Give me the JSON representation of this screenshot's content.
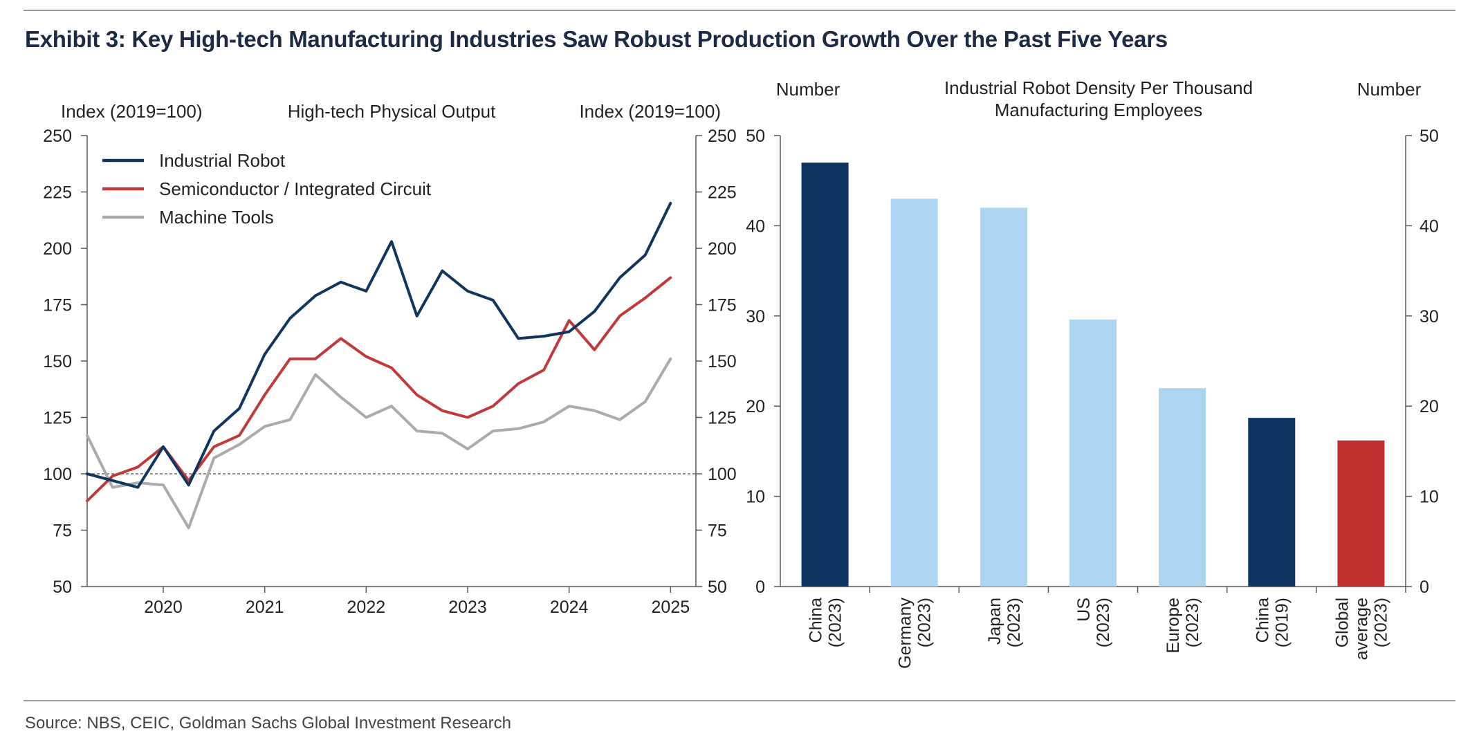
{
  "title": "Exhibit 3: Key High-tech Manufacturing Industries Saw Robust Production Growth Over the Past Five Years",
  "source": "Source: NBS, CEIC, Goldman Sachs Global Investment Research",
  "colors": {
    "navy": "#10365e",
    "red": "#c0393b",
    "gray": "#ababab",
    "light_blue": "#add4f1",
    "china_bar": "#0d3360",
    "global_bar": "#bd2f2f"
  },
  "chart_data": [
    {
      "type": "line",
      "title": "High-tech Physical Output",
      "ylabel_left": "Index (2019=100)",
      "ylabel_right": "Index (2019=100)",
      "ylim": [
        50,
        250
      ],
      "yticks": [
        50,
        75,
        100,
        125,
        150,
        175,
        200,
        225,
        250
      ],
      "reference_line": 100,
      "xlim": [
        2019.25,
        2025.25
      ],
      "xticks": [
        "2020",
        "2021",
        "2022",
        "2023",
        "2024",
        "2025"
      ],
      "series": [
        {
          "name": "Industrial Robot",
          "color": "#10365e",
          "x": [
            2019.25,
            2019.5,
            2019.75,
            2020.0,
            2020.25,
            2020.5,
            2020.75,
            2021.0,
            2021.25,
            2021.5,
            2021.75,
            2022.0,
            2022.25,
            2022.5,
            2022.75,
            2023.0,
            2023.25,
            2023.5,
            2023.75,
            2024.0,
            2024.25,
            2024.5,
            2024.75,
            2025.0
          ],
          "values": [
            100,
            97,
            94,
            112,
            95,
            119,
            129,
            153,
            169,
            179,
            185,
            181,
            203,
            170,
            190,
            181,
            177,
            160,
            161,
            163,
            172,
            187,
            197,
            220
          ]
        },
        {
          "name": "Semiconductor / Integrated Circuit",
          "color": "#c0393b",
          "x": [
            2019.25,
            2019.5,
            2019.75,
            2020.0,
            2020.25,
            2020.5,
            2020.75,
            2021.0,
            2021.25,
            2021.5,
            2021.75,
            2022.0,
            2022.25,
            2022.5,
            2022.75,
            2023.0,
            2023.25,
            2023.5,
            2023.75,
            2024.0,
            2024.25,
            2024.5,
            2024.75,
            2025.0
          ],
          "values": [
            88,
            99,
            103,
            112,
            97,
            112,
            117,
            135,
            151,
            151,
            160,
            152,
            147,
            135,
            128,
            125,
            130,
            140,
            146,
            168,
            155,
            170,
            178,
            187
          ]
        },
        {
          "name": "Machine Tools",
          "color": "#ababab",
          "x": [
            2019.25,
            2019.5,
            2019.75,
            2020.0,
            2020.25,
            2020.5,
            2020.75,
            2021.0,
            2021.25,
            2021.5,
            2021.75,
            2022.0,
            2022.25,
            2022.5,
            2022.75,
            2023.0,
            2023.25,
            2023.5,
            2023.75,
            2024.0,
            2024.25,
            2024.5,
            2024.75,
            2025.0
          ],
          "values": [
            117,
            94,
            96,
            95,
            76,
            107,
            113,
            121,
            124,
            144,
            134,
            125,
            130,
            119,
            118,
            111,
            119,
            120,
            123,
            130,
            128,
            124,
            132,
            151
          ]
        }
      ]
    },
    {
      "type": "bar",
      "title": "Industrial Robot Density Per Thousand Manufacturing Employees",
      "title_lines": [
        "Industrial Robot Density Per Thousand",
        "Manufacturing Employees"
      ],
      "ylabel_left": "Number",
      "ylabel_right": "Number",
      "ylim": [
        0,
        50
      ],
      "yticks": [
        0,
        10,
        20,
        30,
        40,
        50
      ],
      "categories": [
        {
          "lines": [
            "China",
            "(2023)"
          ],
          "value": 47,
          "color": "#0d3360"
        },
        {
          "lines": [
            "Germany",
            "(2023)"
          ],
          "value": 43,
          "color": "#add4f1"
        },
        {
          "lines": [
            "Japan",
            "(2023)"
          ],
          "value": 42,
          "color": "#add4f1"
        },
        {
          "lines": [
            "US",
            "(2023)"
          ],
          "value": 29.6,
          "color": "#add4f1"
        },
        {
          "lines": [
            "Europe",
            "(2023)"
          ],
          "value": 22,
          "color": "#add4f1"
        },
        {
          "lines": [
            "China",
            "(2019)"
          ],
          "value": 18.7,
          "color": "#0d3360"
        },
        {
          "lines": [
            "Global",
            "average",
            "(2023)"
          ],
          "value": 16.2,
          "color": "#bd2f2f"
        }
      ]
    }
  ]
}
